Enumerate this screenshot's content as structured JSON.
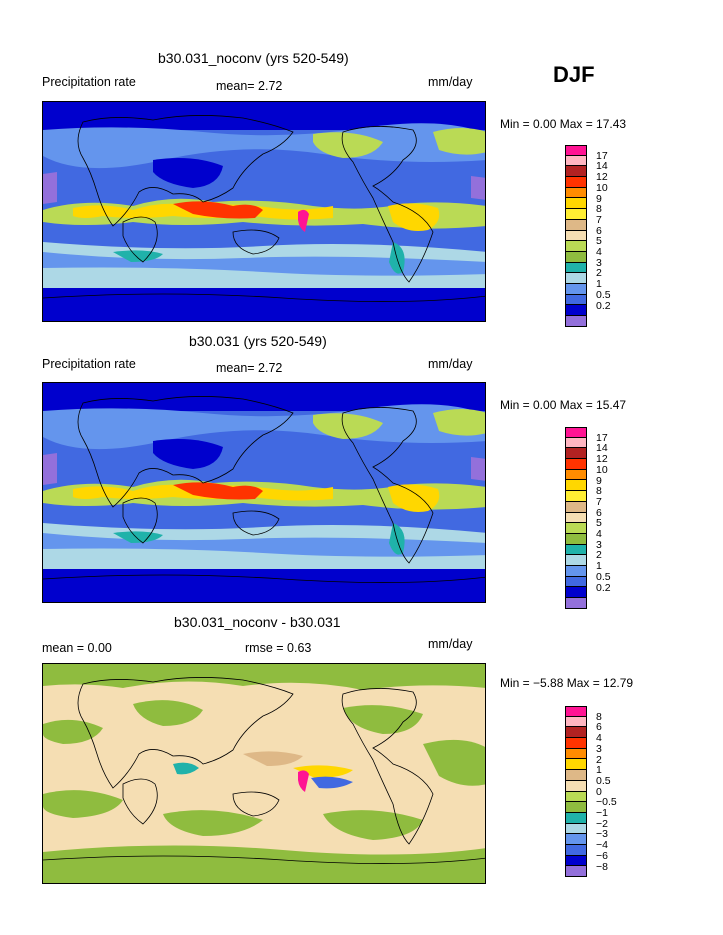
{
  "season": "DJF",
  "panels": [
    {
      "title": "b30.031_noconv (yrs 520-549)",
      "left_label": "Precipitation rate",
      "mid_label": "mean=   2.72",
      "right_label": "mm/day",
      "minmax": "Min =   0.00 Max =  17.43",
      "levels": [
        "17",
        "14",
        "12",
        "10",
        "9",
        "8",
        "7",
        "6",
        "5",
        "4",
        "3",
        "2",
        "1",
        "0.5",
        "0.2"
      ],
      "colors": [
        "#ff1493",
        "#ffb6c1",
        "#b22222",
        "#ff3300",
        "#ff8c00",
        "#ffd700",
        "#ffee33",
        "#deb887",
        "#f5deb3",
        "#bada55",
        "#8fbc3f",
        "#20b2aa",
        "#add8e6",
        "#6495ed",
        "#4169e1",
        "#0000cd",
        "#9370db"
      ]
    },
    {
      "title": "b30.031 (yrs 520-549)",
      "left_label": "Precipitation rate",
      "mid_label": "mean=   2.72",
      "right_label": "mm/day",
      "minmax": "Min =   0.00 Max =  15.47",
      "levels": [
        "17",
        "14",
        "12",
        "10",
        "9",
        "8",
        "7",
        "6",
        "5",
        "4",
        "3",
        "2",
        "1",
        "0.5",
        "0.2"
      ],
      "colors": [
        "#ff1493",
        "#ffb6c1",
        "#b22222",
        "#ff3300",
        "#ff8c00",
        "#ffd700",
        "#ffee33",
        "#deb887",
        "#f5deb3",
        "#bada55",
        "#8fbc3f",
        "#20b2aa",
        "#add8e6",
        "#6495ed",
        "#4169e1",
        "#0000cd",
        "#9370db"
      ]
    },
    {
      "title": "b30.031_noconv - b30.031",
      "left_label": "mean =    0.00",
      "mid_label": "rmse =    0.63",
      "right_label": "mm/day",
      "minmax": "Min =  −5.88 Max =  12.79",
      "levels": [
        "8",
        "6",
        "4",
        "3",
        "2",
        "1",
        "0.5",
        "0",
        "−0.5",
        "−1",
        "−2",
        "−3",
        "−4",
        "−6",
        "−8"
      ],
      "colors": [
        "#ff1493",
        "#ffb6c1",
        "#b22222",
        "#ff3300",
        "#ff8c00",
        "#ffd700",
        "#deb887",
        "#f5deb3",
        "#bada55",
        "#8fbc3f",
        "#20b2aa",
        "#add8e6",
        "#6495ed",
        "#4169e1",
        "#0000cd",
        "#9370db"
      ]
    }
  ]
}
